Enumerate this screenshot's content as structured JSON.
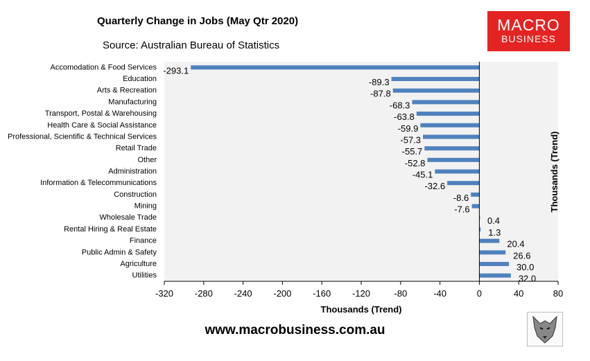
{
  "chart_data": {
    "type": "bar",
    "orientation": "horizontal",
    "title": "Quarterly Change in Jobs (May Qtr 2020)",
    "subtitle": "Source: Australian Bureau of Statistics",
    "xlabel": "Thousands (Trend)",
    "ylabel": "Thousands (Trend)",
    "xlim": [
      -320,
      80
    ],
    "xticks": [
      -320,
      -280,
      -240,
      -200,
      -160,
      -120,
      -80,
      -40,
      0,
      40,
      80
    ],
    "categories": [
      "Accomodation & Food Services",
      "Education",
      "Arts & Recreation",
      "Manufacturing",
      "Transport, Postal & Warehousing",
      "Health Care & Social Assistance",
      "Professional, Scientific & Technical Services",
      "Retail Trade",
      "Other",
      "Administration",
      "Information & Telecommunications",
      "Construction",
      "Mining",
      "Wholesale Trade",
      "Rental Hiring & Real Estate",
      "Finance",
      "Public Admin & Safety",
      "Agriculture",
      "Utilities"
    ],
    "values": [
      -293.1,
      -89.3,
      -87.8,
      -68.3,
      -63.8,
      -59.9,
      -57.3,
      -55.7,
      -52.8,
      -45.1,
      -32.6,
      -8.6,
      -7.6,
      0.4,
      1.3,
      20.4,
      26.6,
      30.0,
      32.0
    ],
    "labels": [
      "-293.1",
      "-89.3",
      "-87.8",
      "-68.3",
      "-63.8",
      "-59.9",
      "-57.3",
      "-55.7",
      "-52.8",
      "-45.1",
      "-32.6",
      "-8.6",
      "-7.6",
      "0.4",
      "1.3",
      "20.4",
      "26.6",
      "30.0",
      "32.0"
    ],
    "bar_color": "#4f81bd",
    "plot_background": "#f2f2f2",
    "grid": false
  },
  "logo": {
    "line1": "MACRO",
    "line2": "BUSINESS",
    "color": "#e32423"
  },
  "website": "www.macrobusiness.com.au"
}
